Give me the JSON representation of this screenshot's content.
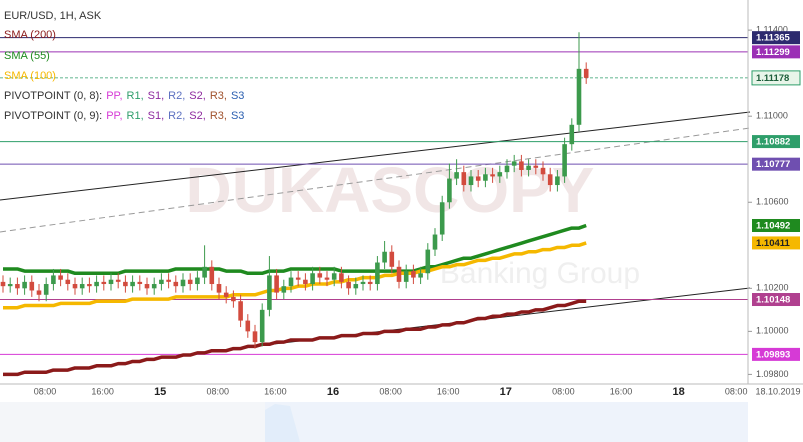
{
  "chart_data": {
    "type": "candlestick",
    "title": "EUR/USD, 1H, ASK",
    "ylim": [
      1.0976,
      1.1154
    ],
    "yticks": [
      {
        "value": 1.114,
        "label": "1.11400"
      },
      {
        "value": 1.11,
        "label": "1.11000"
      },
      {
        "value": 1.106,
        "label": "1.10600"
      },
      {
        "value": 1.102,
        "label": "1.10200"
      },
      {
        "value": 1.1,
        "label": "1.10000"
      },
      {
        "value": 1.098,
        "label": "1.09800"
      }
    ],
    "x_labels": [
      "08:00",
      "16:00",
      "15",
      "08:00",
      "16:00",
      "16",
      "08:00",
      "16:00",
      "17",
      "08:00",
      "16:00",
      "18",
      "08:00"
    ],
    "date_label": "18.10.2019",
    "watermark": "DUKASCOPY",
    "watermark_sub": "Banking Group",
    "up_color": "#3c9a4c",
    "down_color": "#d24b3e",
    "current_color": "#2e9e6a",
    "open": [
      1.1023,
      1.1021,
      1.1022,
      1.102,
      1.1023,
      1.1019,
      1.1017,
      1.1022,
      1.1026,
      1.1024,
      1.1022,
      1.102,
      1.1022,
      1.1021,
      1.1023,
      1.1022,
      1.1024,
      1.1023,
      1.1021,
      1.1023,
      1.1022,
      1.102,
      1.1022,
      1.1024,
      1.1023,
      1.1021,
      1.1024,
      1.1022,
      1.1025,
      1.103,
      1.1022,
      1.1018,
      1.1016,
      1.1014,
      1.1005,
      1.1,
      1.0995,
      1.101,
      1.1026,
      1.1018,
      1.1021,
      1.1025,
      1.1024,
      1.1022,
      1.1027,
      1.1025,
      1.1024,
      1.1027,
      1.1023,
      1.102,
      1.1022,
      1.1023,
      1.1022,
      1.1032,
      1.1037,
      1.103,
      1.1023,
      1.1028,
      1.1025,
      1.1027,
      1.1038,
      1.1045,
      1.106,
      1.1071,
      1.1074,
      1.1068,
      1.1072,
      1.107,
      1.1073,
      1.1072,
      1.1074,
      1.1077,
      1.1079,
      1.1075,
      1.1077,
      1.1076,
      1.1073,
      1.1068,
      1.1072,
      1.1087,
      1.1096,
      1.1122
    ],
    "high": [
      1.1026,
      1.1025,
      1.1025,
      1.1026,
      1.1026,
      1.1022,
      1.1025,
      1.1029,
      1.1029,
      1.1027,
      1.1025,
      1.1025,
      1.1025,
      1.1026,
      1.1026,
      1.1027,
      1.1027,
      1.1026,
      1.1026,
      1.1026,
      1.1025,
      1.1025,
      1.1027,
      1.1027,
      1.1026,
      1.1027,
      1.1027,
      1.1028,
      1.104,
      1.1033,
      1.1025,
      1.1021,
      1.1019,
      1.1017,
      1.1008,
      1.1003,
      1.1013,
      1.1035,
      1.1029,
      1.1024,
      1.1028,
      1.1028,
      1.1027,
      1.103,
      1.103,
      1.1028,
      1.103,
      1.103,
      1.1026,
      1.1025,
      1.1026,
      1.1026,
      1.1035,
      1.1042,
      1.104,
      1.1033,
      1.1031,
      1.1031,
      1.103,
      1.1041,
      1.1048,
      1.1063,
      1.1078,
      1.108,
      1.1077,
      1.1075,
      1.1075,
      1.1076,
      1.1076,
      1.1077,
      1.108,
      1.1082,
      1.1082,
      1.108,
      1.108,
      1.1079,
      1.1076,
      1.1075,
      1.109,
      1.1099,
      1.1139,
      1.1125
    ],
    "low": [
      1.1018,
      1.1018,
      1.1017,
      1.1017,
      1.1016,
      1.1014,
      1.1014,
      1.1019,
      1.1021,
      1.1019,
      1.1017,
      1.1017,
      1.1018,
      1.1018,
      1.1019,
      1.1019,
      1.102,
      1.1018,
      1.1018,
      1.1019,
      1.1017,
      1.1017,
      1.1019,
      1.102,
      1.1018,
      1.1018,
      1.1019,
      1.1019,
      1.1022,
      1.1019,
      1.1015,
      1.1013,
      1.1011,
      1.1002,
      1.0997,
      1.0992,
      1.0993,
      1.1007,
      1.1015,
      1.1015,
      1.1018,
      1.1021,
      1.1019,
      1.1019,
      1.1022,
      1.1021,
      1.1021,
      1.102,
      1.1017,
      1.1017,
      1.1019,
      1.1019,
      1.1019,
      1.1029,
      1.1027,
      1.102,
      1.102,
      1.1022,
      1.1022,
      1.1024,
      1.1035,
      1.1042,
      1.1057,
      1.1068,
      1.1065,
      1.1065,
      1.1067,
      1.1067,
      1.1069,
      1.1069,
      1.1071,
      1.1074,
      1.1072,
      1.1072,
      1.1073,
      1.107,
      1.1065,
      1.1065,
      1.1069,
      1.1084,
      1.1093,
      1.1115
    ],
    "close": [
      1.1021,
      1.1022,
      1.102,
      1.1023,
      1.1019,
      1.1017,
      1.1022,
      1.1026,
      1.1024,
      1.1022,
      1.102,
      1.1022,
      1.1021,
      1.1023,
      1.1022,
      1.1024,
      1.1023,
      1.1021,
      1.1023,
      1.1022,
      1.102,
      1.1022,
      1.1024,
      1.1023,
      1.1021,
      1.1024,
      1.1022,
      1.1025,
      1.103,
      1.1022,
      1.1018,
      1.1016,
      1.1014,
      1.1005,
      1.1,
      1.0995,
      1.101,
      1.1026,
      1.1018,
      1.1021,
      1.1025,
      1.1024,
      1.1022,
      1.1027,
      1.1025,
      1.1024,
      1.1027,
      1.1023,
      1.102,
      1.1022,
      1.1023,
      1.1022,
      1.1032,
      1.1037,
      1.103,
      1.1023,
      1.1028,
      1.1025,
      1.1027,
      1.1038,
      1.1045,
      1.106,
      1.1071,
      1.1074,
      1.1068,
      1.1072,
      1.107,
      1.1073,
      1.1072,
      1.1074,
      1.1077,
      1.1079,
      1.1075,
      1.1077,
      1.1076,
      1.1073,
      1.1068,
      1.1072,
      1.1087,
      1.1096,
      1.1122,
      1.11178
    ],
    "indicators": [
      {
        "name": "SMA (200)",
        "color": "#8b1a1a",
        "values": [
          1.098,
          1.098,
          1.098,
          1.0981,
          1.0981,
          1.0981,
          1.0981,
          1.0982,
          1.0982,
          1.0982,
          1.0983,
          1.0983,
          1.0983,
          1.0984,
          1.0984,
          1.0984,
          1.0985,
          1.0985,
          1.0986,
          1.0986,
          1.0987,
          1.0987,
          1.0988,
          1.0988,
          1.0988,
          1.0989,
          1.0989,
          1.099,
          1.099,
          1.0991,
          1.0991,
          1.0991,
          1.0992,
          1.0992,
          1.0993,
          1.0993,
          1.0994,
          1.0994,
          1.0995,
          1.0995,
          1.0996,
          1.0996,
          1.0996,
          1.0996,
          1.0997,
          1.0997,
          1.0997,
          1.0998,
          1.0998,
          1.0998,
          1.0999,
          1.0999,
          1.0999,
          1.1,
          1.1,
          1.1,
          1.1001,
          1.1001,
          1.1001,
          1.1002,
          1.1002,
          1.1003,
          1.1003,
          1.1004,
          1.1004,
          1.1005,
          1.1006,
          1.1006,
          1.1007,
          1.1007,
          1.1008,
          1.1008,
          1.1009,
          1.1009,
          1.101,
          1.101,
          1.1011,
          1.1012,
          1.1012,
          1.1013,
          1.1014,
          1.1014
        ]
      },
      {
        "name": "SMA (55)",
        "color": "#1f8a1f",
        "values": [
          1.1029,
          1.1029,
          1.1029,
          1.1028,
          1.1028,
          1.1028,
          1.1028,
          1.1028,
          1.1028,
          1.1028,
          1.1027,
          1.1027,
          1.1027,
          1.1027,
          1.1027,
          1.1027,
          1.1027,
          1.1028,
          1.1028,
          1.1028,
          1.1028,
          1.1028,
          1.1028,
          1.1028,
          1.1029,
          1.1029,
          1.1029,
          1.1029,
          1.1029,
          1.1029,
          1.1029,
          1.1028,
          1.1028,
          1.1028,
          1.1027,
          1.1027,
          1.1027,
          1.1028,
          1.1028,
          1.1028,
          1.1029,
          1.1029,
          1.1029,
          1.1029,
          1.1029,
          1.1029,
          1.1029,
          1.1028,
          1.1028,
          1.1028,
          1.1028,
          1.1028,
          1.1028,
          1.1028,
          1.1028,
          1.1028,
          1.1028,
          1.1028,
          1.1029,
          1.103,
          1.103,
          1.1031,
          1.1032,
          1.1033,
          1.1034,
          1.1034,
          1.1035,
          1.1036,
          1.1037,
          1.1038,
          1.1039,
          1.104,
          1.1041,
          1.1042,
          1.1043,
          1.1044,
          1.1045,
          1.1046,
          1.1047,
          1.1048,
          1.1048,
          1.10492
        ]
      },
      {
        "name": "SMA (100)",
        "color": "#f5b800",
        "values": [
          1.1011,
          1.1011,
          1.1011,
          1.1012,
          1.1012,
          1.1012,
          1.1012,
          1.1012,
          1.1013,
          1.1013,
          1.1013,
          1.1013,
          1.1013,
          1.1014,
          1.1014,
          1.1014,
          1.1014,
          1.1014,
          1.1015,
          1.1015,
          1.1015,
          1.1015,
          1.1015,
          1.1015,
          1.1016,
          1.1016,
          1.1016,
          1.1016,
          1.1016,
          1.1016,
          1.1016,
          1.1016,
          1.1017,
          1.1017,
          1.1017,
          1.1017,
          1.1018,
          1.1019,
          1.1019,
          1.102,
          1.102,
          1.1021,
          1.1021,
          1.1022,
          1.1022,
          1.1022,
          1.1023,
          1.1023,
          1.1024,
          1.1024,
          1.1025,
          1.1025,
          1.1025,
          1.1026,
          1.1026,
          1.1027,
          1.1027,
          1.1027,
          1.1028,
          1.1028,
          1.1029,
          1.103,
          1.103,
          1.1031,
          1.1031,
          1.1032,
          1.1033,
          1.1033,
          1.1034,
          1.1034,
          1.1035,
          1.1036,
          1.1036,
          1.1037,
          1.1037,
          1.1038,
          1.1038,
          1.1039,
          1.1039,
          1.104,
          1.104,
          1.10411
        ]
      }
    ],
    "levels": [
      {
        "value": 1.11365,
        "color": "#2c2a6e"
      },
      {
        "value": 1.11299,
        "color": "#9b30b5"
      },
      {
        "value": 1.10882,
        "color": "#2e9e6a"
      },
      {
        "value": 1.10777,
        "color": "#6f4fb0"
      },
      {
        "value": 1.10148,
        "color": "#b0408f"
      },
      {
        "value": 1.09893,
        "color": "#d63ad6"
      }
    ],
    "pivot_legends": [
      {
        "label": "PIVOTPOINT (0, 8):",
        "items": [
          {
            "name": "PP,",
            "color": "#d63ad6"
          },
          {
            "name": "R1,",
            "color": "#2e9e6a"
          },
          {
            "name": "S1,",
            "color": "#8e2a9e"
          },
          {
            "name": "R2,",
            "color": "#5b6fc0"
          },
          {
            "name": "S2,",
            "color": "#8e2a9e"
          },
          {
            "name": "R3,",
            "color": "#a0522d"
          },
          {
            "name": "S3",
            "color": "#2b5fb0"
          }
        ]
      },
      {
        "label": "PIVOTPOINT (0, 9):",
        "items": [
          {
            "name": "PP,",
            "color": "#d63ad6"
          },
          {
            "name": "R1,",
            "color": "#2e9e6a"
          },
          {
            "name": "S1,",
            "color": "#8e2a9e"
          },
          {
            "name": "R2,",
            "color": "#5b6fc0"
          },
          {
            "name": "S2,",
            "color": "#8e2a9e"
          },
          {
            "name": "R3,",
            "color": "#a0522d"
          },
          {
            "name": "S3",
            "color": "#2b5fb0"
          }
        ]
      }
    ]
  }
}
